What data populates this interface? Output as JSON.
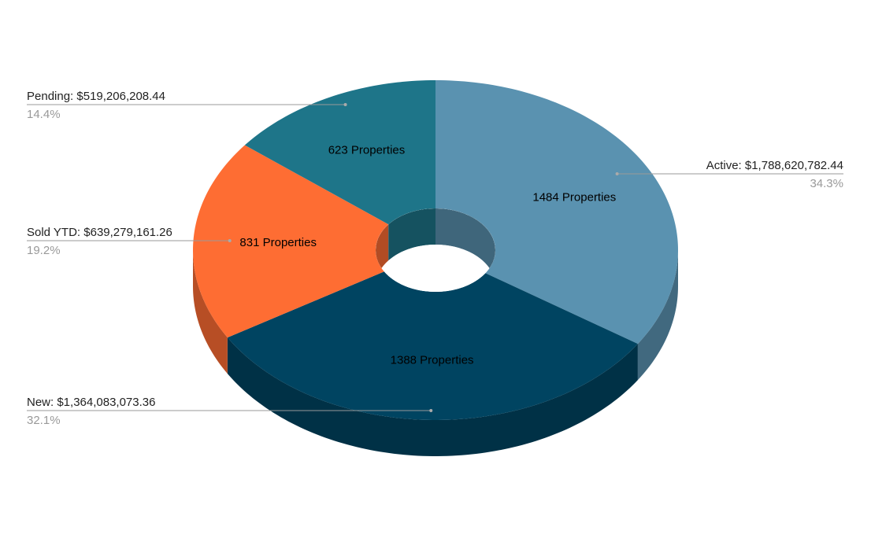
{
  "chart_data": {
    "type": "pie",
    "donut": true,
    "three_d": true,
    "categories": [
      "Active",
      "New",
      "Sold YTD",
      "Pending"
    ],
    "slice_labels": [
      "Active: $1,788,620,782.44",
      "New: $1,364,083,073.36",
      "Sold YTD: $639,279,161.26",
      "Pending: $519,206,208.44"
    ],
    "values": [
      34.3,
      32.1,
      19.2,
      14.4
    ],
    "value_labels": [
      "34.3%",
      "32.1%",
      "19.2%",
      "14.4%"
    ],
    "properties": [
      1484,
      1388,
      831,
      623
    ],
    "property_labels": [
      "1484 Properties",
      "1388 Properties",
      "831 Properties",
      "623 Properties"
    ],
    "colors": [
      "#5a92b0",
      "#004461",
      "#fe6d33",
      "#1e7589"
    ]
  }
}
